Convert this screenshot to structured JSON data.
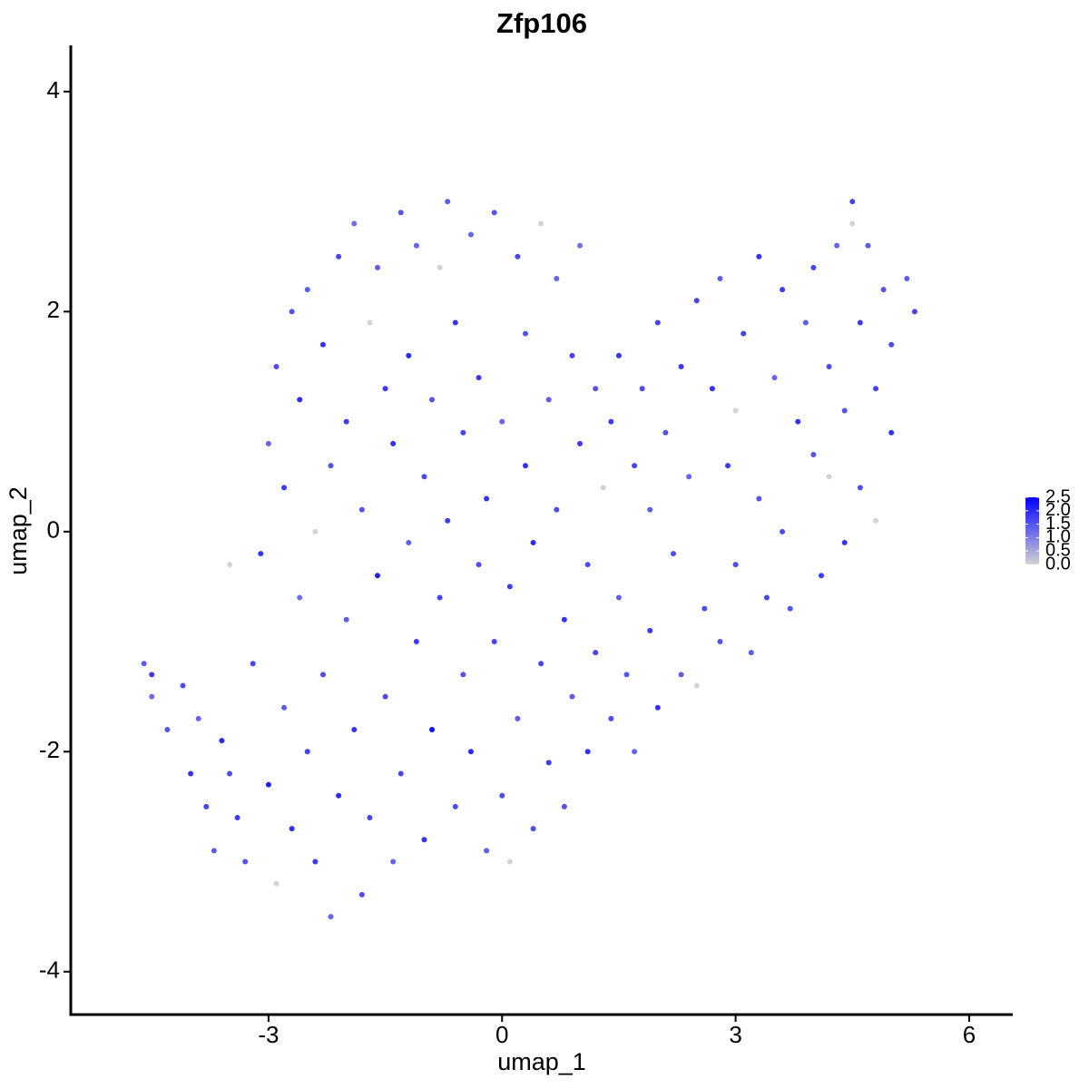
{
  "chart_data": {
    "type": "scatter",
    "title": "Zfp106",
    "x_label": "umap_1",
    "y_label": "umap_2",
    "x": [
      -4.6,
      -4.5,
      -4.5,
      -4.3,
      -4.1,
      -4.0,
      -3.9,
      -3.8,
      -3.7,
      -3.6,
      -3.5,
      -3.5,
      -3.4,
      -3.3,
      -3.2,
      -3.1,
      -3.0,
      -3.0,
      -2.9,
      -2.9,
      -2.8,
      -2.8,
      -2.7,
      -2.7,
      -2.6,
      -2.6,
      -2.5,
      -2.5,
      -2.4,
      -2.4,
      -2.3,
      -2.3,
      -2.2,
      -2.2,
      -2.1,
      -2.1,
      -2.0,
      -2.0,
      -1.9,
      -1.9,
      -1.8,
      -1.8,
      -1.7,
      -1.7,
      -1.6,
      -1.6,
      -1.5,
      -1.5,
      -1.4,
      -1.4,
      -1.3,
      -1.3,
      -1.2,
      -1.2,
      -1.1,
      -1.1,
      -1.0,
      -1.0,
      -0.9,
      -0.9,
      -0.8,
      -0.8,
      -0.7,
      -0.7,
      -0.6,
      -0.6,
      -0.5,
      -0.5,
      -0.4,
      -0.4,
      -0.3,
      -0.3,
      -0.2,
      -0.2,
      -0.1,
      -0.1,
      0.0,
      0.0,
      0.1,
      0.1,
      0.2,
      0.2,
      0.3,
      0.3,
      0.4,
      0.4,
      0.5,
      0.5,
      0.6,
      0.6,
      0.7,
      0.7,
      0.8,
      0.8,
      0.9,
      0.9,
      1.0,
      1.0,
      1.1,
      1.1,
      1.2,
      1.2,
      1.3,
      1.4,
      1.4,
      1.5,
      1.5,
      1.6,
      1.7,
      1.7,
      1.8,
      1.9,
      1.9,
      2.0,
      2.0,
      2.1,
      2.2,
      2.3,
      2.3,
      2.4,
      2.5,
      2.5,
      2.6,
      2.7,
      2.8,
      2.8,
      2.9,
      3.0,
      3.0,
      3.1,
      3.2,
      3.3,
      3.3,
      3.4,
      3.5,
      3.6,
      3.6,
      3.7,
      3.8,
      3.9,
      4.0,
      4.0,
      4.1,
      4.2,
      4.2,
      4.3,
      4.4,
      4.4,
      4.5,
      4.5,
      4.6,
      4.6,
      4.7,
      4.8,
      4.8,
      4.9,
      5.0,
      5.0,
      5.2,
      5.3
    ],
    "y": [
      -1.2,
      -1.3,
      -1.5,
      -1.8,
      -1.4,
      -2.2,
      -1.7,
      -2.5,
      -2.9,
      -1.9,
      -0.3,
      -2.2,
      -2.6,
      -3.0,
      -1.2,
      -0.2,
      -2.3,
      0.8,
      -3.2,
      1.5,
      -1.6,
      0.4,
      2.0,
      -2.7,
      -0.6,
      1.2,
      -2.0,
      2.2,
      0.0,
      -3.0,
      -1.3,
      1.7,
      -3.5,
      0.6,
      2.5,
      -2.4,
      -0.8,
      1.0,
      2.8,
      -1.8,
      -3.3,
      0.2,
      1.9,
      -2.6,
      -0.4,
      2.4,
      1.3,
      -1.5,
      -3.0,
      0.8,
      2.9,
      -2.2,
      -0.1,
      1.6,
      -1.0,
      2.6,
      0.5,
      -2.8,
      1.2,
      -1.8,
      2.4,
      -0.6,
      3.0,
      0.1,
      -2.5,
      1.9,
      -1.3,
      0.9,
      2.7,
      -2.0,
      -0.3,
      1.4,
      -2.9,
      0.3,
      2.9,
      -1.0,
      1.0,
      -2.4,
      -3.0,
      -0.5,
      2.5,
      -1.7,
      0.6,
      1.8,
      -2.7,
      -0.1,
      2.8,
      -1.2,
      1.2,
      -2.1,
      0.2,
      2.3,
      -0.8,
      -2.5,
      1.6,
      -1.5,
      0.8,
      2.6,
      -0.3,
      -2.0,
      1.3,
      -1.1,
      0.4,
      -1.7,
      1.0,
      -0.6,
      1.6,
      -1.3,
      0.6,
      -2.0,
      1.3,
      -0.9,
      0.2,
      1.9,
      -1.6,
      0.9,
      -0.2,
      -1.3,
      1.5,
      0.5,
      -1.4,
      2.1,
      -0.7,
      1.3,
      -1.0,
      2.3,
      0.6,
      1.1,
      -0.3,
      1.8,
      -1.1,
      2.5,
      0.3,
      -0.6,
      1.4,
      2.2,
      0.0,
      -0.7,
      1.0,
      1.9,
      2.4,
      0.7,
      -0.4,
      0.5,
      1.5,
      2.6,
      -0.1,
      1.1,
      3.0,
      2.8,
      0.4,
      1.9,
      2.6,
      1.3,
      0.1,
      2.2,
      0.9,
      1.7,
      2.3,
      2.0
    ],
    "values": [
      1.4,
      1.8,
      1.2,
      1.5,
      1.6,
      1.9,
      1.3,
      1.7,
      1.4,
      2.0,
      0,
      1.6,
      1.8,
      1.5,
      1.7,
      1.9,
      2.1,
      1.3,
      0,
      1.6,
      1.4,
      1.8,
      1.5,
      1.9,
      1.2,
      2.0,
      1.7,
      1.4,
      0,
      1.8,
      1.6,
      1.9,
      1.3,
      1.5,
      1.7,
      2.0,
      1.4,
      1.8,
      1.2,
      1.9,
      1.6,
      1.5,
      0,
      1.7,
      2.1,
      1.4,
      1.8,
      1.6,
      1.3,
      1.9,
      1.5,
      1.7,
      1.4,
      2.0,
      1.8,
      1.3,
      1.6,
      1.9,
      1.5,
      2.3,
      0,
      1.7,
      1.4,
      1.8,
      1.6,
      1.9,
      1.5,
      1.7,
      1.3,
      2.0,
      1.6,
      1.8,
      1.4,
      1.9,
      1.5,
      1.7,
      1.3,
      1.6,
      0,
      1.8,
      1.7,
      1.4,
      1.9,
      1.5,
      1.6,
      2.0,
      0,
      1.7,
      1.4,
      1.8,
      1.6,
      1.3,
      1.9,
      1.5,
      1.7,
      1.4,
      1.8,
      1.2,
      1.6,
      1.9,
      1.5,
      1.7,
      0,
      1.6,
      1.8,
      1.4,
      1.9,
      1.5,
      1.7,
      1.3,
      1.6,
      1.8,
      1.4,
      1.7,
      1.9,
      1.5,
      1.6,
      1.4,
      1.8,
      1.3,
      0,
      1.7,
      1.6,
      1.9,
      1.5,
      1.4,
      1.8,
      0,
      1.6,
      1.7,
      1.4,
      1.9,
      1.5,
      1.7,
      1.3,
      1.8,
      1.6,
      1.5,
      1.9,
      1.4,
      1.7,
      1.5,
      1.8,
      0,
      1.6,
      1.3,
      1.9,
      1.5,
      1.7,
      0,
      1.6,
      1.8,
      1.4,
      1.7,
      0,
      1.5,
      1.9,
      1.6,
      1.4,
      1.7
    ],
    "xlim": [
      -5.54,
      6.56
    ],
    "ylim": [
      -4.39,
      4.42
    ],
    "xticks": [
      -3,
      0,
      3,
      6
    ],
    "yticks": [
      -4,
      -2,
      0,
      2,
      4
    ],
    "colorbar": {
      "low_color": "#d3d3d3",
      "high_color": "#0000ff",
      "lim": [
        0,
        2.5
      ],
      "ticks": [
        {
          "value": 0,
          "label": "0.0"
        },
        0.5,
        {
          "value": 1,
          "label": "1.0"
        },
        1.5,
        {
          "value": 2,
          "label": "2.0"
        },
        2.5
      ]
    }
  }
}
